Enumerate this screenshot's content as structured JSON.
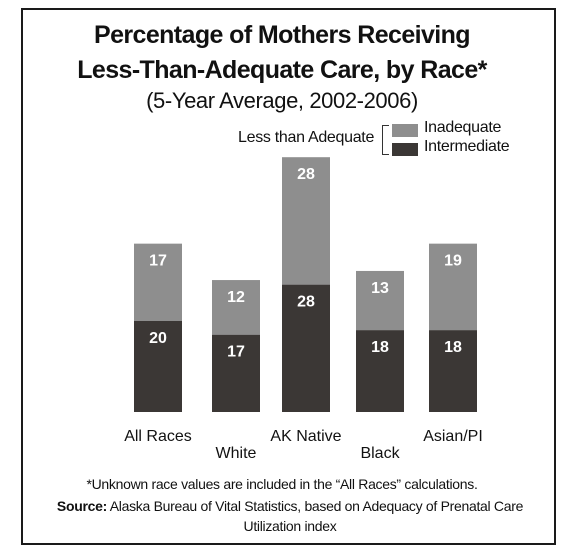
{
  "chart_data": {
    "type": "bar",
    "stacked": true,
    "title_line1": "Percentage of Mothers Receiving",
    "title_line2": "Less-Than-Adequate Care, by Race*",
    "subtitle": "(5-Year Average, 2002-2006)",
    "categories": [
      "All Races",
      "White",
      "AK Native",
      "Black",
      "Asian/PI"
    ],
    "series": [
      {
        "name": "Intermediate",
        "values": [
          20,
          17,
          28,
          18,
          18
        ],
        "color": "#3b3735"
      },
      {
        "name": "Inadequate",
        "values": [
          17,
          12,
          28,
          13,
          19
        ],
        "color": "#8e8e8e"
      }
    ],
    "legend_group_label": "Less than Adequate",
    "legend_placement": "top-right",
    "grid": false,
    "ylim": [
      0,
      56
    ]
  },
  "footnote": "*Unknown race values are included in the “All Races” calculations.",
  "source_label": "Source:",
  "source_text": "Alaska Bureau of Vital Statistics, based on Adequacy of Prenatal Care Utilization index"
}
